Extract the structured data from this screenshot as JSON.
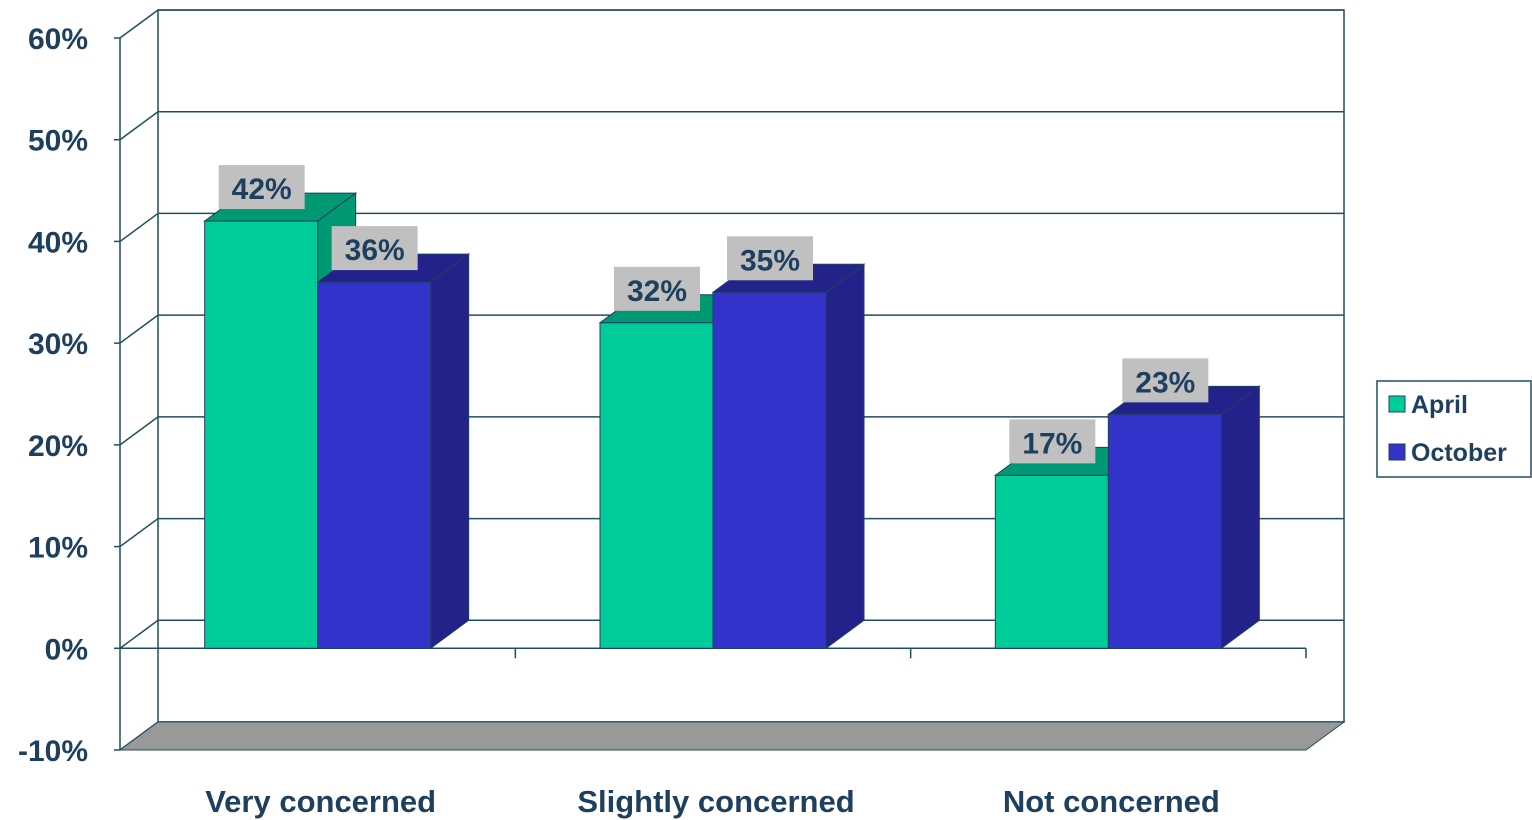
{
  "chart_data": {
    "type": "bar",
    "categories": [
      "Very concerned",
      "Slightly concerned",
      "Not concerned"
    ],
    "series": [
      {
        "name": "April",
        "values": [
          42,
          32,
          17
        ]
      },
      {
        "name": "October",
        "values": [
          36,
          35,
          23
        ]
      }
    ],
    "value_labels": [
      [
        "42%",
        "32%",
        "17%"
      ],
      [
        "36%",
        "35%",
        "23%"
      ]
    ],
    "y_ticks": [
      "60%",
      "50%",
      "40%",
      "30%",
      "20%",
      "10%",
      "0%",
      "-10%"
    ],
    "ylim": [
      -10,
      60
    ],
    "grid": true,
    "legend_position": "right",
    "colors": {
      "april_front": "#00cc99",
      "april_side": "#009973",
      "october_front": "#3333cc",
      "october_side": "#22228a",
      "floor": "#999999",
      "label_box": "#c0c0c0",
      "text": "#1f3f5f",
      "grid": "#1f4f5f"
    }
  }
}
